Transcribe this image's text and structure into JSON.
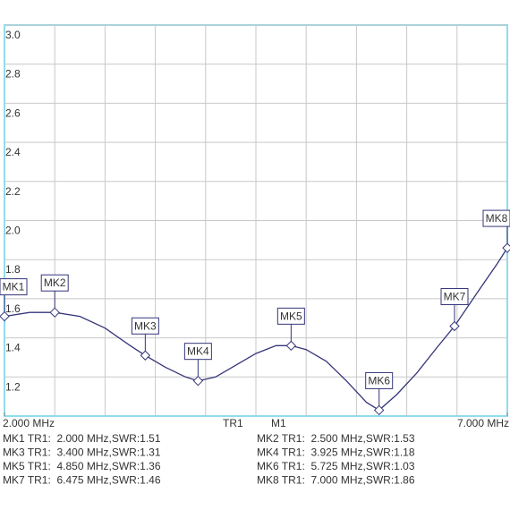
{
  "chart_data": {
    "type": "line",
    "xlim": [
      2,
      7
    ],
    "ylim": [
      1,
      3
    ],
    "xticks": [
      {
        "value": 2,
        "label": "2.000 MHz"
      },
      {
        "value": 7,
        "label": "7.000 MHz"
      }
    ],
    "yticks": [
      1.2,
      1.4,
      1.6,
      1.8,
      {
        "value": 2,
        "label": "2.0"
      },
      2.2,
      2.4,
      2.6,
      2.8,
      {
        "value": 3,
        "label": "3.0"
      }
    ],
    "grid": true,
    "trace_label": "TR1",
    "marker_label": "M1",
    "series": [
      {
        "color": "#35357a",
        "x": [
          2.0,
          2.25,
          2.5,
          2.75,
          3.0,
          3.25,
          3.4,
          3.6,
          3.8,
          3.925,
          4.1,
          4.3,
          4.5,
          4.7,
          4.85,
          5.0,
          5.2,
          5.4,
          5.6,
          5.725,
          5.9,
          6.1,
          6.3,
          6.475,
          6.7,
          6.9,
          7.0
        ],
        "values": [
          1.51,
          1.53,
          1.53,
          1.51,
          1.45,
          1.36,
          1.31,
          1.25,
          1.2,
          1.18,
          1.2,
          1.26,
          1.32,
          1.36,
          1.36,
          1.34,
          1.28,
          1.18,
          1.07,
          1.03,
          1.11,
          1.22,
          1.35,
          1.46,
          1.63,
          1.78,
          1.86
        ]
      }
    ],
    "markers": [
      {
        "name": "MK1",
        "freq": 2.0,
        "swr": 1.51
      },
      {
        "name": "MK2",
        "freq": 2.5,
        "swr": 1.53
      },
      {
        "name": "MK3",
        "freq": 3.4,
        "swr": 1.31
      },
      {
        "name": "MK4",
        "freq": 3.925,
        "swr": 1.18
      },
      {
        "name": "MK5",
        "freq": 4.85,
        "swr": 1.36
      },
      {
        "name": "MK6",
        "freq": 5.725,
        "swr": 1.03
      },
      {
        "name": "MK7",
        "freq": 6.475,
        "swr": 1.46
      },
      {
        "name": "MK8",
        "freq": 7.0,
        "swr": 1.86
      }
    ],
    "readout": [
      "MK1 TR1:  2.000 MHz,SWR:1.51",
      "MK2 TR1:  2.500 MHz,SWR:1.53",
      "MK3 TR1:  3.400 MHz,SWR:1.31",
      "MK4 TR1:  3.925 MHz,SWR:1.18",
      "MK5 TR1:  4.850 MHz,SWR:1.36",
      "MK6 TR1:  5.725 MHz,SWR:1.03",
      "MK7 TR1:  6.475 MHz,SWR:1.46",
      "MK8 TR1:  7.000 MHz,SWR:1.86"
    ]
  }
}
